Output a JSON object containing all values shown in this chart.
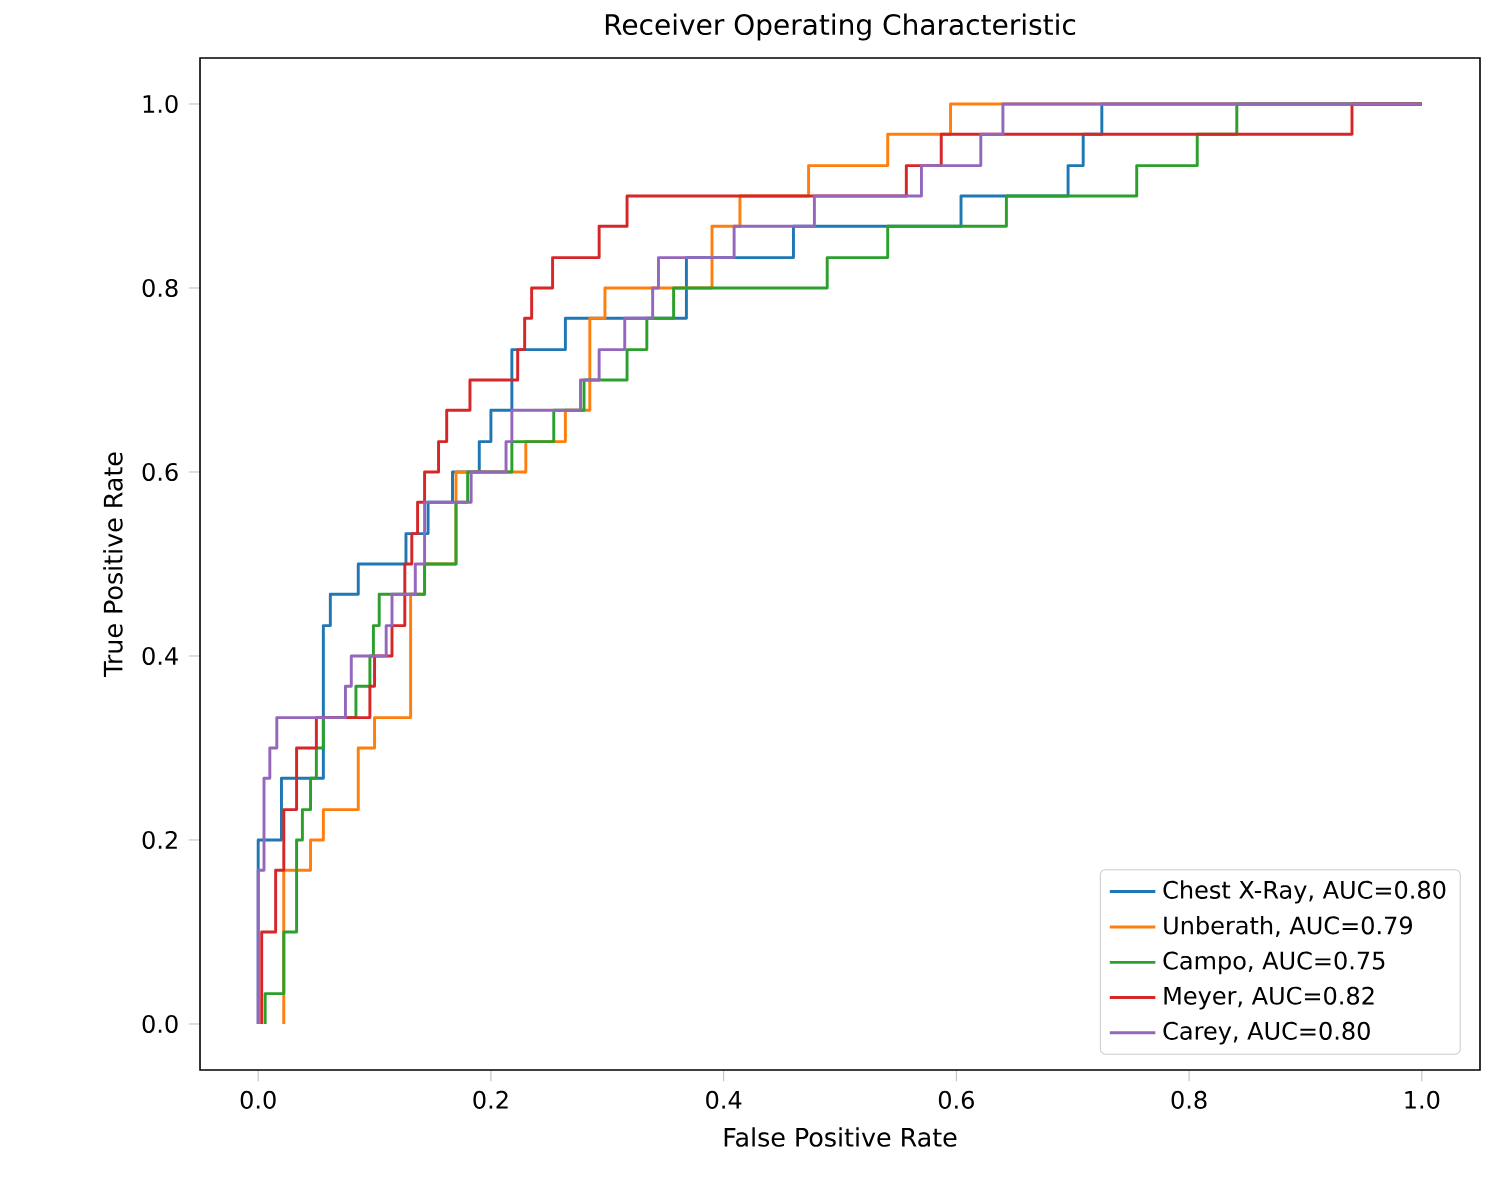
{
  "chart_data": {
    "type": "line",
    "title": "Receiver Operating Characteristic",
    "xlabel": "False Positive Rate",
    "ylabel": "True Positive Rate",
    "xlim": [
      -0.05,
      1.05
    ],
    "ylim": [
      -0.05,
      1.05
    ],
    "xticks": [
      {
        "value": 0,
        "label": "0.0"
      },
      {
        "value": 0.2,
        "label": "0.2"
      },
      {
        "value": 0.4,
        "label": "0.4"
      },
      {
        "value": 0.6,
        "label": "0.6"
      },
      {
        "value": 0.8,
        "label": "0.8"
      },
      {
        "value": 1,
        "label": "1.0"
      }
    ],
    "yticks": [
      {
        "value": 0,
        "label": "0.0"
      },
      {
        "value": 0.2,
        "label": "0.2"
      },
      {
        "value": 0.4,
        "label": "0.4"
      },
      {
        "value": 0.6,
        "label": "0.6"
      },
      {
        "value": 0.8,
        "label": "0.8"
      },
      {
        "value": 1,
        "label": "1.0"
      }
    ],
    "legend": "bottom right",
    "line_style": "solid",
    "series": [
      {
        "name": "Chest X-Ray, AUC=0.80",
        "color": "#1f77b4",
        "x": [
          0,
          0,
          0.02,
          0.02,
          0.056,
          0.056,
          0.062,
          0.062,
          0.086,
          0.086,
          0.127,
          0.127,
          0.146,
          0.146,
          0.167,
          0.167,
          0.19,
          0.19,
          0.2,
          0.2,
          0.218,
          0.218,
          0.264,
          0.264,
          0.368,
          0.368,
          0.46,
          0.46,
          0.604,
          0.604,
          0.696,
          0.696,
          0.709,
          0.709,
          0.725,
          0.725,
          1
        ],
        "values": [
          0,
          0.2,
          0.2,
          0.267,
          0.267,
          0.433,
          0.433,
          0.467,
          0.467,
          0.5,
          0.5,
          0.533,
          0.533,
          0.567,
          0.567,
          0.6,
          0.6,
          0.633,
          0.633,
          0.667,
          0.667,
          0.733,
          0.733,
          0.767,
          0.767,
          0.833,
          0.833,
          0.867,
          0.867,
          0.9,
          0.9,
          0.933,
          0.933,
          0.967,
          0.967,
          1,
          1
        ]
      },
      {
        "name": "Unberath, AUC=0.79",
        "color": "#ff7f0e",
        "x": [
          0.022,
          0.022,
          0.045,
          0.045,
          0.056,
          0.056,
          0.086,
          0.086,
          0.1,
          0.1,
          0.131,
          0.131,
          0.143,
          0.143,
          0.17,
          0.17,
          0.23,
          0.23,
          0.264,
          0.264,
          0.285,
          0.285,
          0.298,
          0.298,
          0.39,
          0.39,
          0.414,
          0.414,
          0.473,
          0.473,
          0.541,
          0.541,
          0.595,
          0.595,
          1
        ],
        "values": [
          0,
          0.167,
          0.167,
          0.2,
          0.2,
          0.233,
          0.233,
          0.3,
          0.3,
          0.333,
          0.333,
          0.467,
          0.467,
          0.5,
          0.5,
          0.6,
          0.6,
          0.633,
          0.633,
          0.667,
          0.667,
          0.767,
          0.767,
          0.8,
          0.8,
          0.867,
          0.867,
          0.9,
          0.9,
          0.933,
          0.933,
          0.967,
          0.967,
          1,
          1
        ]
      },
      {
        "name": "Campo, AUC=0.75",
        "color": "#2ca02c",
        "x": [
          0.006,
          0.006,
          0.022,
          0.022,
          0.033,
          0.033,
          0.038,
          0.038,
          0.045,
          0.045,
          0.05,
          0.05,
          0.056,
          0.056,
          0.084,
          0.084,
          0.096,
          0.096,
          0.099,
          0.099,
          0.104,
          0.104,
          0.143,
          0.143,
          0.17,
          0.17,
          0.18,
          0.18,
          0.218,
          0.218,
          0.254,
          0.254,
          0.28,
          0.28,
          0.317,
          0.317,
          0.334,
          0.334,
          0.357,
          0.357,
          0.489,
          0.489,
          0.541,
          0.541,
          0.643,
          0.643,
          0.755,
          0.755,
          0.807,
          0.807,
          0.841,
          0.841,
          1
        ],
        "values": [
          0,
          0.033,
          0.033,
          0.1,
          0.1,
          0.2,
          0.2,
          0.233,
          0.233,
          0.267,
          0.267,
          0.3,
          0.3,
          0.333,
          0.333,
          0.367,
          0.367,
          0.4,
          0.4,
          0.433,
          0.433,
          0.467,
          0.467,
          0.5,
          0.5,
          0.567,
          0.567,
          0.6,
          0.6,
          0.633,
          0.633,
          0.667,
          0.667,
          0.7,
          0.7,
          0.733,
          0.733,
          0.767,
          0.767,
          0.8,
          0.8,
          0.833,
          0.833,
          0.867,
          0.867,
          0.9,
          0.9,
          0.933,
          0.933,
          0.967,
          0.967,
          1,
          1
        ]
      },
      {
        "name": "Meyer, AUC=0.82",
        "color": "#d62728",
        "x": [
          0.003,
          0.003,
          0.015,
          0.015,
          0.022,
          0.022,
          0.033,
          0.033,
          0.05,
          0.05,
          0.096,
          0.096,
          0.1,
          0.1,
          0.115,
          0.115,
          0.126,
          0.126,
          0.132,
          0.132,
          0.137,
          0.137,
          0.143,
          0.143,
          0.155,
          0.155,
          0.162,
          0.162,
          0.182,
          0.182,
          0.223,
          0.223,
          0.229,
          0.229,
          0.235,
          0.235,
          0.253,
          0.253,
          0.293,
          0.293,
          0.317,
          0.317,
          0.557,
          0.557,
          0.587,
          0.587,
          0.94,
          0.94,
          1
        ],
        "values": [
          0,
          0.1,
          0.1,
          0.167,
          0.167,
          0.233,
          0.233,
          0.3,
          0.3,
          0.333,
          0.333,
          0.367,
          0.367,
          0.4,
          0.4,
          0.433,
          0.433,
          0.5,
          0.5,
          0.533,
          0.533,
          0.567,
          0.567,
          0.6,
          0.6,
          0.633,
          0.633,
          0.667,
          0.667,
          0.7,
          0.7,
          0.733,
          0.733,
          0.767,
          0.767,
          0.8,
          0.8,
          0.833,
          0.833,
          0.867,
          0.867,
          0.9,
          0.9,
          0.933,
          0.933,
          0.967,
          0.967,
          1,
          1
        ]
      },
      {
        "name": "Carey, AUC=0.80",
        "color": "#9467bd",
        "x": [
          0,
          0,
          0.005,
          0.005,
          0.01,
          0.01,
          0.016,
          0.016,
          0.075,
          0.075,
          0.08,
          0.08,
          0.11,
          0.11,
          0.115,
          0.115,
          0.135,
          0.135,
          0.143,
          0.143,
          0.183,
          0.183,
          0.213,
          0.213,
          0.218,
          0.218,
          0.277,
          0.277,
          0.293,
          0.293,
          0.315,
          0.315,
          0.339,
          0.339,
          0.344,
          0.344,
          0.409,
          0.409,
          0.478,
          0.478,
          0.57,
          0.57,
          0.621,
          0.621,
          0.64,
          0.64,
          1
        ],
        "values": [
          0,
          0.167,
          0.167,
          0.267,
          0.267,
          0.3,
          0.3,
          0.333,
          0.333,
          0.367,
          0.367,
          0.4,
          0.4,
          0.433,
          0.433,
          0.467,
          0.467,
          0.5,
          0.5,
          0.567,
          0.567,
          0.6,
          0.6,
          0.633,
          0.633,
          0.667,
          0.667,
          0.7,
          0.7,
          0.733,
          0.733,
          0.767,
          0.767,
          0.8,
          0.8,
          0.833,
          0.833,
          0.867,
          0.867,
          0.9,
          0.9,
          0.933,
          0.933,
          0.967,
          0.967,
          1,
          1
        ]
      }
    ]
  }
}
